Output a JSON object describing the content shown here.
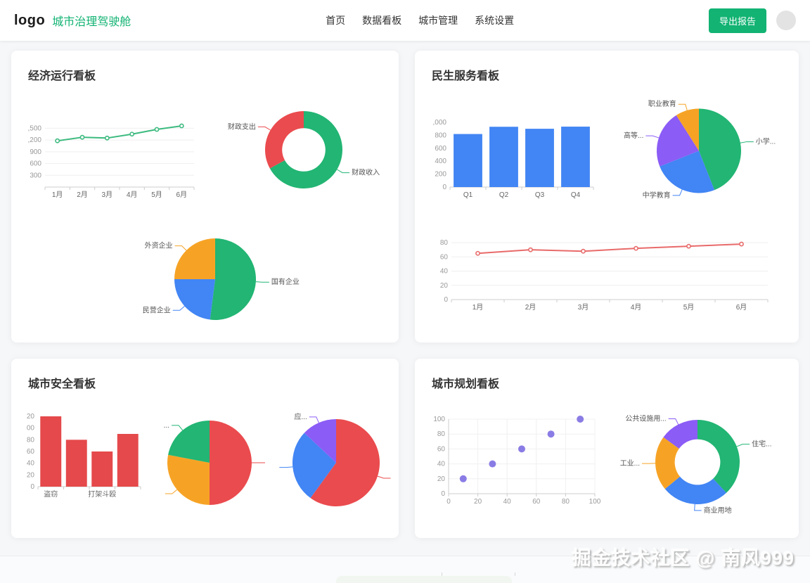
{
  "header": {
    "logo": "logo",
    "brand": "城市治理驾驶舱",
    "nav": [
      "首页",
      "数据看板",
      "城市管理",
      "系统设置"
    ],
    "export_button": "导出报告"
  },
  "panels": [
    {
      "title": "经济运行看板"
    },
    {
      "title": "民生服务看板"
    },
    {
      "title": "城市安全看板"
    },
    {
      "title": "城市规划看板"
    }
  ],
  "watermark": "掘金技术社区 @ 南风999",
  "colors": {
    "accent_green": "#12b373",
    "chart_green": "#22b573",
    "chart_blue": "#4285f4",
    "chart_red": "#ea4b4e",
    "chart_orange": "#f6a325",
    "chart_purple": "#8b5cf6",
    "scatter_purple": "#7d6ee2"
  },
  "chart_data": [
    {
      "id": "econ-line",
      "type": "line",
      "color": "#3cba7f",
      "grid": true,
      "mleft": 36,
      "x": [
        "1月",
        "2月",
        "3月",
        "4月",
        "5月",
        "6月"
      ],
      "values": [
        1180,
        1270,
        1250,
        1350,
        1470,
        1560
      ],
      "ymin": 0,
      "ymax": 1650,
      "y_ticks": [
        {
          "v": 300,
          "label": "300"
        },
        {
          "v": 600,
          "label": "600"
        },
        {
          "v": 900,
          "label": "900"
        },
        {
          "v": 1200,
          "label": ",200"
        },
        {
          "v": 1500,
          "label": ",500"
        }
      ]
    },
    {
      "id": "econ-donut",
      "type": "pie",
      "inner_ratio": 0.56,
      "r": 55,
      "slices": [
        {
          "label": "财政收入",
          "value": 67,
          "color": "#22b573"
        },
        {
          "label": "财政支出",
          "value": 33,
          "color": "#ea4b4e"
        }
      ]
    },
    {
      "id": "econ-pie",
      "type": "pie",
      "r": 58,
      "slices": [
        {
          "label": "国有企业",
          "value": 52,
          "color": "#22b573"
        },
        {
          "label": "民营企业",
          "value": 23,
          "color": "#4285f4"
        },
        {
          "label": "外资企业",
          "value": 25,
          "color": "#f6a325"
        }
      ]
    },
    {
      "id": "liv-bar",
      "type": "bar",
      "color": "#4285f4",
      "grid": false,
      "mleft": 36,
      "bar_ratio": 0.8,
      "x": [
        "Q1",
        "Q2",
        "Q3",
        "Q4"
      ],
      "values": [
        820,
        932,
        901,
        934
      ],
      "ymin": 0,
      "ymax": 1000,
      "y_ticks": [
        {
          "v": 0,
          "label": "0"
        },
        {
          "v": 200,
          "label": "200"
        },
        {
          "v": 400,
          "label": "400"
        },
        {
          "v": 600,
          "label": "600"
        },
        {
          "v": 800,
          "label": "800"
        },
        {
          "v": 1000,
          "label": ",000"
        }
      ]
    },
    {
      "id": "liv-pie",
      "type": "pie",
      "r": 60,
      "slices": [
        {
          "label": "小学...",
          "value": 44,
          "color": "#22b573"
        },
        {
          "label": "中学教育",
          "value": 25,
          "color": "#4285f4"
        },
        {
          "label": "高等...",
          "value": 22,
          "color": "#8b5cf6"
        },
        {
          "label": "职业教育",
          "value": 9,
          "color": "#f6a325"
        }
      ]
    },
    {
      "id": "liv-line",
      "type": "line",
      "color": "#e96a6a",
      "grid": true,
      "mleft": 30,
      "x": [
        "1月",
        "2月",
        "3月",
        "4月",
        "5月",
        "6月"
      ],
      "values": [
        65,
        70,
        68,
        72,
        75,
        78
      ],
      "ymin": 0,
      "ymax": 85,
      "y_ticks": [
        {
          "v": 0,
          "label": "0"
        },
        {
          "v": 20,
          "label": "20"
        },
        {
          "v": 40,
          "label": "40"
        },
        {
          "v": 60,
          "label": "60"
        },
        {
          "v": 80,
          "label": "80"
        }
      ]
    },
    {
      "id": "safety-bar",
      "type": "bar",
      "color": "#e5494b",
      "grid": false,
      "mleft": 24,
      "bar_ratio": 0.82,
      "x": [
        "盗窃",
        "",
        "打架斗殴",
        ""
      ],
      "values": [
        120,
        80,
        60,
        90
      ],
      "ymin": 0,
      "ymax": 120,
      "y_ticks": [
        {
          "v": 0,
          "label": "0"
        },
        {
          "v": 20,
          "label": "20"
        },
        {
          "v": 40,
          "label": "40"
        },
        {
          "v": 60,
          "label": "60"
        },
        {
          "v": 80,
          "label": "80"
        },
        {
          "v": 100,
          "label": "00"
        },
        {
          "v": 120,
          "label": "20"
        }
      ]
    },
    {
      "id": "safety-pie-left",
      "type": "pie",
      "r": 60,
      "slices": [
        {
          "label": "",
          "value": 50,
          "color": "#ea4b4e"
        },
        {
          "label": "",
          "value": 28,
          "color": "#f6a325"
        },
        {
          "label": "...",
          "value": 22,
          "color": "#22b573"
        }
      ]
    },
    {
      "id": "safety-pie-right",
      "type": "pie",
      "r": 62,
      "slices": [
        {
          "label": "",
          "value": 60,
          "color": "#ea4b4e"
        },
        {
          "label": "",
          "value": 27,
          "color": "#4285f4"
        },
        {
          "label": "应...",
          "value": 13,
          "color": "#8b5cf6"
        }
      ]
    },
    {
      "id": "plan-scatter",
      "type": "scatter",
      "color": "#7d6ee2",
      "points": [
        [
          10,
          20
        ],
        [
          30,
          40
        ],
        [
          50,
          60
        ],
        [
          70,
          80
        ],
        [
          90,
          100
        ]
      ],
      "x_ticks": [
        0,
        20,
        40,
        60,
        80,
        100
      ],
      "y_ticks": [
        0,
        20,
        40,
        60,
        80,
        100
      ]
    },
    {
      "id": "plan-donut",
      "type": "pie",
      "inner_ratio": 0.54,
      "r": 60,
      "slices": [
        {
          "label": "住宅...",
          "value": 38,
          "color": "#22b573"
        },
        {
          "label": "商业用地",
          "value": 26,
          "color": "#4285f4"
        },
        {
          "label": "工业...",
          "value": 21,
          "color": "#f6a325"
        },
        {
          "label": "公共设施用...",
          "value": 15,
          "color": "#8b5cf6"
        }
      ]
    }
  ]
}
